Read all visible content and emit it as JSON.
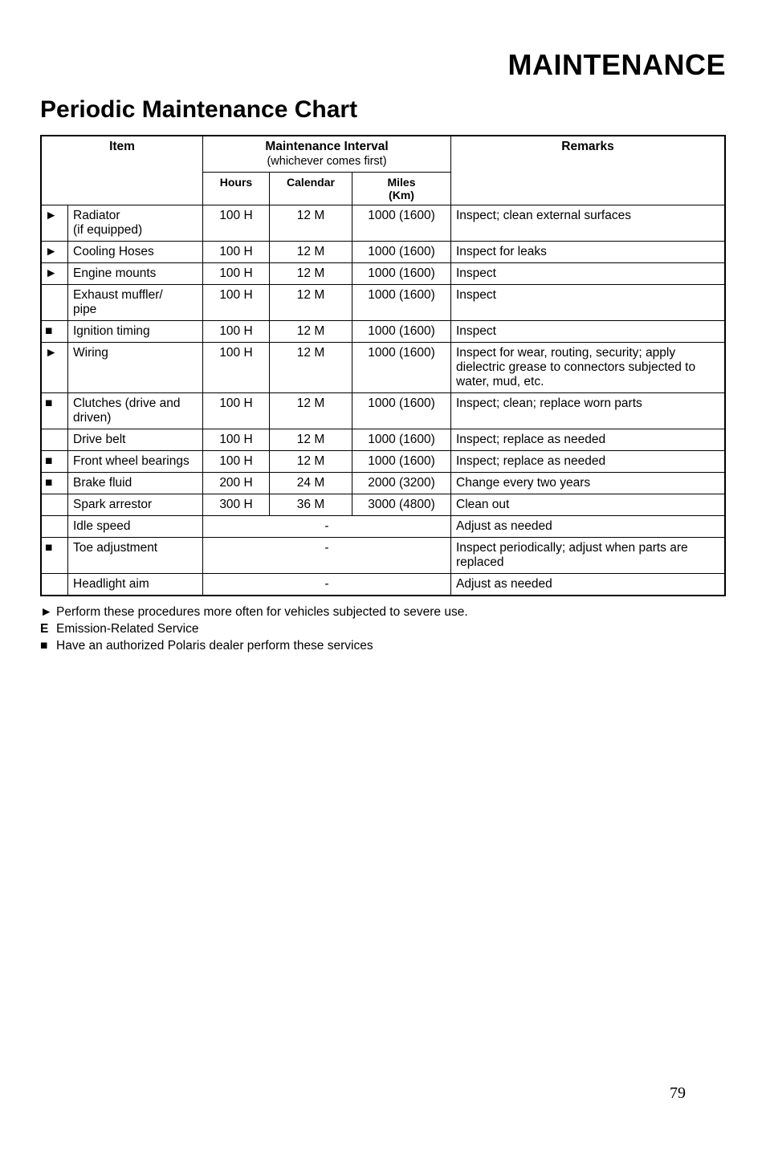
{
  "page_title": "MAINTENANCE",
  "section_title": "Periodic Maintenance Chart",
  "headers": {
    "item": "Item",
    "maintenance_interval": "Maintenance Interval",
    "maintenance_sub": "(whichever comes first)",
    "remarks": "Remarks",
    "hours": "Hours",
    "calendar": "Calendar",
    "miles": "Miles\n(Km)"
  },
  "rows": [
    {
      "sym": "►",
      "item": "Radiator\n(if equipped)",
      "hours": "100 H",
      "cal": "12 M",
      "miles": "1000 (1600)",
      "remarks": "Inspect; clean external surfaces"
    },
    {
      "sym": "►",
      "item": "Cooling Hoses",
      "hours": "100 H",
      "cal": "12 M",
      "miles": "1000 (1600)",
      "remarks": "Inspect for leaks"
    },
    {
      "sym": "►",
      "item": "Engine mounts",
      "hours": "100 H",
      "cal": "12 M",
      "miles": "1000 (1600)",
      "remarks": "Inspect"
    },
    {
      "sym": "",
      "item": "Exhaust muffler/\npipe",
      "hours": "100 H",
      "cal": "12 M",
      "miles": "1000 (1600)",
      "remarks": "Inspect"
    },
    {
      "sym": "■",
      "item": "Ignition timing",
      "hours": "100 H",
      "cal": "12 M",
      "miles": "1000 (1600)",
      "remarks": "Inspect"
    },
    {
      "sym": "►",
      "item": "Wiring",
      "hours": "100 H",
      "cal": "12 M",
      "miles": "1000 (1600)",
      "remarks": "Inspect for wear, routing, security; apply dielectric grease to connectors subjected to water, mud, etc."
    },
    {
      "sym": "■",
      "item": "Clutches (drive and driven)",
      "hours": "100 H",
      "cal": "12 M",
      "miles": "1000 (1600)",
      "remarks": "Inspect; clean; replace worn parts"
    },
    {
      "sym": "",
      "item": "Drive belt",
      "hours": "100 H",
      "cal": "12 M",
      "miles": "1000 (1600)",
      "remarks": "Inspect; replace as needed"
    },
    {
      "sym": "■",
      "item": "Front wheel bearings",
      "hours": "100 H",
      "cal": "12 M",
      "miles": "1000 (1600)",
      "remarks": "Inspect; replace as needed"
    },
    {
      "sym": "■",
      "item": "Brake fluid",
      "hours": "200 H",
      "cal": "24 M",
      "miles": "2000 (3200)",
      "remarks": "Change every two years"
    },
    {
      "sym": "",
      "item": "Spark arrestor",
      "hours": "300 H",
      "cal": "36 M",
      "miles": "3000 (4800)",
      "remarks": "Clean out"
    },
    {
      "sym": "",
      "item": "Idle speed",
      "merged": true,
      "merged_text": "-",
      "remarks": "Adjust as needed"
    },
    {
      "sym": "■",
      "item": "Toe adjustment",
      "merged": true,
      "merged_text": "-",
      "remarks": "Inspect periodically; adjust when parts are replaced"
    },
    {
      "sym": "",
      "item": "Headlight aim",
      "merged": true,
      "merged_text": "-",
      "remarks": "Adjust as needed"
    }
  ],
  "legend": [
    {
      "sym": "►",
      "text": "Perform these procedures more often for vehicles subjected to severe use."
    },
    {
      "sym": "E",
      "text": "Emission-Related Service",
      "bold_sym": true
    },
    {
      "sym": "■",
      "text": "Have an authorized Polaris dealer perform these services"
    }
  ],
  "page_number": "79"
}
